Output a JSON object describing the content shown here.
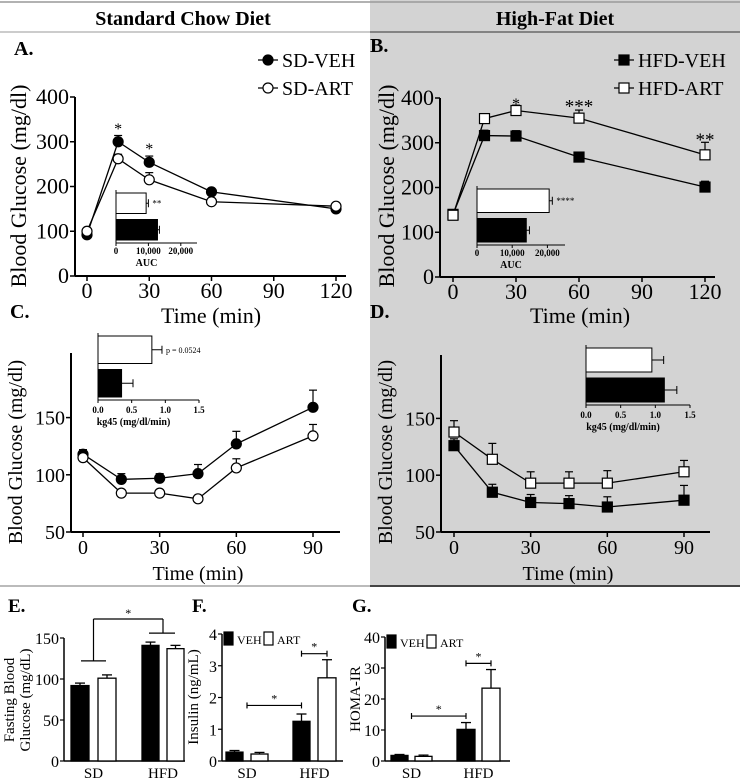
{
  "headers": {
    "left": "Standard Chow Diet",
    "right": "High-Fat Diet"
  },
  "colors": {
    "right_bg": "#d3d3d3",
    "veh": "#000000",
    "art": "#ffffff"
  },
  "chart_data": [
    {
      "id": "A",
      "type": "line",
      "panel_label": "A.",
      "xlabel": "Time (min)",
      "ylabel": "Blood Glucose (mg/dl)",
      "xlim": [
        0,
        120
      ],
      "ylim": [
        0,
        400
      ],
      "xticks": [
        0,
        30,
        60,
        90,
        120
      ],
      "yticks": [
        0,
        100,
        200,
        300,
        400
      ],
      "marker": "circle",
      "legend": [
        "SD-VEH",
        "SD-ART"
      ],
      "x": [
        0,
        15,
        30,
        60,
        120
      ],
      "series": [
        {
          "name": "SD-VEH",
          "values": [
            92,
            300,
            254,
            188,
            150
          ],
          "err": [
            5,
            14,
            14,
            5,
            5
          ]
        },
        {
          "name": "SD-ART",
          "values": [
            100,
            262,
            215,
            166,
            156
          ],
          "err": [
            5,
            10,
            16,
            5,
            5
          ]
        }
      ],
      "annotations": [
        {
          "x": 15,
          "text": "*",
          "y": 340
        },
        {
          "x": 30,
          "text": "*",
          "y": 295
        }
      ],
      "inset": {
        "type": "bar",
        "xlabel": "AUC",
        "xlim": [
          0,
          25000
        ],
        "xticks": [
          0,
          10000,
          20000
        ],
        "ticklabels": [
          "0",
          "10,000",
          "20,000"
        ],
        "values": [
          9300,
          12800
        ],
        "err": [
          700,
          600
        ],
        "annotation": "**"
      }
    },
    {
      "id": "B",
      "type": "line",
      "panel_label": "B.",
      "xlabel": "Time (min)",
      "ylabel": "Blood Glucose (mg/dl)",
      "xlim": [
        0,
        120
      ],
      "ylim": [
        0,
        400
      ],
      "xticks": [
        0,
        30,
        60,
        90,
        120
      ],
      "yticks": [
        0,
        100,
        200,
        300,
        400
      ],
      "marker": "square",
      "legend": [
        "HFD-VEH",
        "HFD-ART"
      ],
      "x": [
        0,
        15,
        30,
        60,
        120
      ],
      "series": [
        {
          "name": "HFD-VEH",
          "values": [
            140,
            316,
            315,
            268,
            201
          ],
          "err": [
            8,
            12,
            12,
            10,
            13
          ]
        },
        {
          "name": "HFD-ART",
          "values": [
            138,
            354,
            372,
            355,
            273
          ],
          "err": [
            8,
            8,
            12,
            18,
            28
          ]
        }
      ],
      "annotations": [
        {
          "x": 30,
          "text": "*",
          "y": 398
        },
        {
          "x": 60,
          "text": "***",
          "y": 390
        },
        {
          "x": 120,
          "text": "**",
          "y": 315
        }
      ],
      "inset": {
        "type": "bar",
        "xlabel": "AUC",
        "xlim": [
          0,
          25000
        ],
        "xticks": [
          0,
          10000,
          20000
        ],
        "ticklabels": [
          "0",
          "10,000",
          "20,000"
        ],
        "values": [
          20500,
          14000
        ],
        "err": [
          900,
          900
        ],
        "annotation": "****"
      }
    },
    {
      "id": "C",
      "type": "line",
      "panel_label": "C.",
      "xlabel": "Time (min)",
      "ylabel": "Blood Glucose (mg/dl)",
      "xlim": [
        0,
        90
      ],
      "ylim": [
        50,
        175
      ],
      "xticks": [
        0,
        30,
        60,
        90
      ],
      "yticks": [
        50,
        100,
        150
      ],
      "marker": "circle",
      "x": [
        0,
        15,
        30,
        45,
        60,
        90
      ],
      "series": [
        {
          "name": "SD-VEH",
          "values": [
            118,
            96,
            97,
            101,
            127,
            159
          ],
          "err": [
            4,
            5,
            4,
            8,
            11,
            15
          ]
        },
        {
          "name": "SD-ART",
          "values": [
            115,
            84,
            84,
            79,
            106,
            134
          ],
          "err": [
            3,
            3,
            3,
            3,
            8,
            10
          ]
        }
      ],
      "inset": {
        "type": "bar",
        "xlabel": "kg45 (mg/dl/min)",
        "xlim": [
          0,
          1.5
        ],
        "xticks": [
          0,
          0.5,
          1,
          1.5
        ],
        "ticklabels": [
          "0.0",
          "0.5",
          "1.0",
          "1.5"
        ],
        "values": [
          0.8,
          0.35
        ],
        "err": [
          0.15,
          0.17
        ],
        "annotation": "p = 0.0524"
      }
    },
    {
      "id": "D",
      "type": "line",
      "panel_label": "D.",
      "xlabel": "Time (min)",
      "ylabel": "Blood Glucose (mg/dl)",
      "xlim": [
        0,
        90
      ],
      "ylim": [
        50,
        175
      ],
      "xticks": [
        0,
        30,
        60,
        90
      ],
      "yticks": [
        50,
        100,
        150
      ],
      "marker": "square",
      "x": [
        0,
        15,
        30,
        45,
        60,
        90
      ],
      "series": [
        {
          "name": "HFD-VEH",
          "values": [
            126,
            85,
            76,
            75,
            72,
            78
          ],
          "err": [
            6,
            7,
            7,
            7,
            9,
            13
          ]
        },
        {
          "name": "HFD-ART",
          "values": [
            138,
            114,
            93,
            93,
            93,
            103
          ],
          "err": [
            10,
            14,
            10,
            10,
            11,
            10
          ]
        }
      ],
      "inset": {
        "type": "bar",
        "xlabel": "kg45 (mg/dl/min)",
        "xlim": [
          0,
          1.5
        ],
        "xticks": [
          0,
          0.5,
          1,
          1.5
        ],
        "ticklabels": [
          "0.0",
          "0.5",
          "1.0",
          "1.5"
        ],
        "values": [
          0.95,
          1.13
        ],
        "err": [
          0.17,
          0.18
        ],
        "annotation": ""
      }
    },
    {
      "id": "E",
      "type": "bar",
      "panel_label": "E.",
      "ylabel": "Fasting Blood Glucose (mg/dL)",
      "ylabel_lines": [
        "Fasting Blood",
        "Glucose (mg/dL)"
      ],
      "categories": [
        "SD",
        "HFD"
      ],
      "ylim": [
        0,
        150
      ],
      "yticks": [
        0,
        50,
        100,
        150
      ],
      "series": [
        {
          "name": "VEH",
          "values": [
            92,
            141
          ],
          "err": [
            3,
            4
          ]
        },
        {
          "name": "ART",
          "values": [
            101,
            137
          ],
          "err": [
            4,
            4
          ]
        }
      ],
      "annotations": [
        {
          "text": "*"
        }
      ]
    },
    {
      "id": "F",
      "type": "bar",
      "panel_label": "F.",
      "ylabel": "Insulin (ng/mL)",
      "ylabel_lines": [
        "Insulin (ng/mL)"
      ],
      "categories": [
        "SD",
        "HFD"
      ],
      "ylim": [
        0,
        4
      ],
      "yticks": [
        0,
        1,
        2,
        3,
        4
      ],
      "legend": [
        "VEH",
        "ART"
      ],
      "series": [
        {
          "name": "VEH",
          "values": [
            0.28,
            1.25
          ],
          "err": [
            0.05,
            0.23
          ]
        },
        {
          "name": "ART",
          "values": [
            0.22,
            2.62
          ],
          "err": [
            0.05,
            0.57
          ]
        }
      ],
      "annotations": [
        {
          "text": "*"
        },
        {
          "text": "*"
        }
      ]
    },
    {
      "id": "G",
      "type": "bar",
      "panel_label": "G.",
      "ylabel": "HOMA-IR",
      "ylabel_lines": [
        "HOMA-IR"
      ],
      "categories": [
        "SD",
        "HFD"
      ],
      "ylim": [
        0,
        40
      ],
      "yticks": [
        0,
        10,
        20,
        30,
        40
      ],
      "legend": [
        "VEH",
        "ART"
      ],
      "series": [
        {
          "name": "VEH",
          "values": [
            1.8,
            10.2
          ],
          "err": [
            0.3,
            2.2
          ]
        },
        {
          "name": "ART",
          "values": [
            1.5,
            23.5
          ],
          "err": [
            0.4,
            6
          ]
        }
      ],
      "annotations": [
        {
          "text": "*"
        },
        {
          "text": "*"
        }
      ]
    }
  ]
}
